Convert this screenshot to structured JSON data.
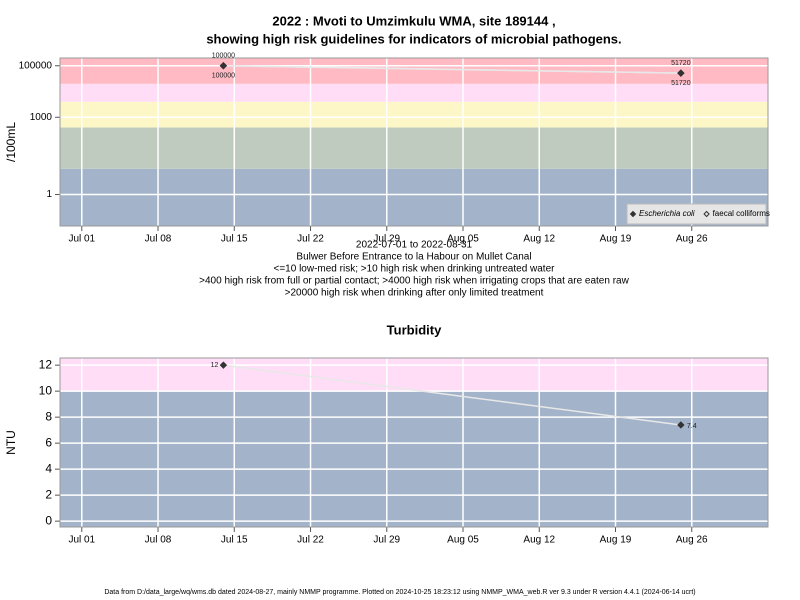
{
  "chart_data": [
    {
      "type": "line",
      "title": [
        "2022 : Mvoti to Umzimkulu WMA, site 189144 ,",
        "showing high risk guidelines for indicators of microbial pathogens."
      ],
      "ylabel": "/100mL",
      "log_y": true,
      "ylim": [
        0.06,
        200000
      ],
      "yticks": [
        1,
        1000,
        100000
      ],
      "xlim": [
        "2022-06-29",
        "2022-09-02"
      ],
      "xticks": [
        {
          "value": "2022-07-01",
          "label": "Jul 01"
        },
        {
          "value": "2022-07-08",
          "label": "Jul 08"
        },
        {
          "value": "2022-07-15",
          "label": "Jul 15"
        },
        {
          "value": "2022-07-22",
          "label": "Jul 22"
        },
        {
          "value": "2022-07-29",
          "label": "Jul 29"
        },
        {
          "value": "2022-08-05",
          "label": "Aug 05"
        },
        {
          "value": "2022-08-12",
          "label": "Aug 12"
        },
        {
          "value": "2022-08-19",
          "label": "Aug 19"
        },
        {
          "value": "2022-08-26",
          "label": "Aug 26"
        }
      ],
      "grid": true,
      "bands": [
        {
          "upper": 10,
          "color": "#a3b3c9"
        },
        {
          "upper": 400,
          "color": "#c0cbbf"
        },
        {
          "upper": 4000,
          "color": "#fdf7c8"
        },
        {
          "upper": 20000,
          "color": "#ffddf7"
        },
        {
          "color": "#ffbac3"
        }
      ],
      "legend": "bottom-right",
      "series": [
        {
          "name": "Escherichia coli",
          "marker": "filled",
          "color": "#333333",
          "line_color": "#e8e8e8",
          "label_position": [
            "above",
            "above"
          ],
          "x": [
            "2022-07-14",
            "2022-08-25"
          ],
          "values": [
            100000,
            51720
          ]
        },
        {
          "name": "faecal colliforms",
          "marker": "open",
          "color": "#333333",
          "line_color": "#e8e8e8",
          "label_position": [
            "below",
            "below"
          ],
          "x": [
            "2022-07-14",
            "2022-08-25"
          ],
          "values": [
            100000,
            51720
          ]
        }
      ],
      "notes": [
        "2022-07-01 to 2022-08-31",
        "Bulwer Before Entrance to la Habour on Mullet Canal",
        "<=10 low-med risk; >10 high risk when drinking untreated water",
        ">400 high risk from full or partial contact; >4000 high risk when irrigating crops that are eaten raw",
        ">20000 high risk when drinking after only limited treatment"
      ]
    },
    {
      "type": "line",
      "title": [
        "Turbidity"
      ],
      "ylabel": "NTU",
      "log_y": false,
      "ylim": [
        -0.45,
        12.55
      ],
      "yticks": [
        0,
        2,
        4,
        6,
        8,
        10,
        12
      ],
      "xlim": [
        "2022-06-29",
        "2022-09-02"
      ],
      "xticks": [
        {
          "value": "2022-07-01",
          "label": "Jul 01"
        },
        {
          "value": "2022-07-08",
          "label": "Jul 08"
        },
        {
          "value": "2022-07-15",
          "label": "Jul 15"
        },
        {
          "value": "2022-07-22",
          "label": "Jul 22"
        },
        {
          "value": "2022-07-29",
          "label": "Jul 29"
        },
        {
          "value": "2022-08-05",
          "label": "Aug 05"
        },
        {
          "value": "2022-08-12",
          "label": "Aug 12"
        },
        {
          "value": "2022-08-19",
          "label": "Aug 19"
        },
        {
          "value": "2022-08-26",
          "label": "Aug 26"
        }
      ],
      "grid": true,
      "bands": [
        {
          "upper": 10,
          "color": "#a3b3c9"
        },
        {
          "color": "#ffddf7"
        }
      ],
      "series": [
        {
          "marker": "filled",
          "color": "#333333",
          "line_color": "#e8e8e8",
          "label_position": [
            "left",
            "right"
          ],
          "x": [
            "2022-07-14",
            "2022-08-25"
          ],
          "values": [
            12,
            7.4
          ]
        }
      ]
    }
  ],
  "footer": "Data from D:/data_large/wq/wms.db dated 2024-08-27, mainly NMMP programme. Plotted on 2024-10-25 18:23:12 using NMMP_WMA_web.R ver 9.3 under R version 4.4.1 (2024-06-14 ucrt)"
}
